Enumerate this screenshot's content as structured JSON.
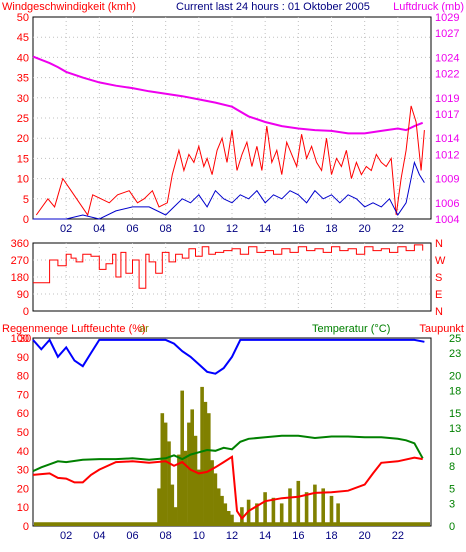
{
  "colors": {
    "wind": "#ff0000",
    "gust": "#ff0000",
    "wind_avg": "#0000cc",
    "pressure": "#ee00ee",
    "direction": "#ff0000",
    "humidity": "#0000ff",
    "temperature": "#008000",
    "dewpoint": "#ff0000",
    "rain": "#808000",
    "rain_bottom": "#808000",
    "frame": "#000000",
    "grid": "#c0c0c0",
    "label_left": "#ff0000",
    "label_humidity": "#0000ff",
    "label_temp": "#008000",
    "label_dew": "#ff0000",
    "label_pressure": "#ee00ee",
    "label_dir": "#ff0000",
    "title": "#000080"
  },
  "chart_data": [
    {
      "type": "line",
      "title": "Current last 24 hours : 01 Oktober 2005",
      "y_left_label": "Windgeschwindigkeit (kmh)",
      "y_right_label": "Luftdruck (mb)",
      "x_ticks": [
        "02",
        "04",
        "06",
        "08",
        "10",
        "12",
        "14",
        "16",
        "18",
        "20",
        "22"
      ],
      "x_range": [
        0,
        24
      ],
      "y_left_ticks": [
        0,
        5,
        10,
        15,
        20,
        25,
        30,
        35,
        40,
        45,
        50
      ],
      "ylim_left": [
        0,
        50
      ],
      "y_right_ticks": [
        1004,
        1006,
        1009,
        1012,
        1014,
        1017,
        1019,
        1022,
        1024,
        1027,
        1029
      ],
      "ylim_right": [
        1004,
        1029
      ],
      "grid": true,
      "series": [
        {
          "name": "Luftdruck (mb)",
          "axis": "right",
          "x": [
            0,
            0.5,
            1,
            1.5,
            2,
            3,
            4,
            5,
            6,
            7,
            8,
            9,
            10,
            11,
            12,
            13,
            14,
            15,
            16,
            17,
            18,
            19,
            20,
            21,
            22,
            22.5,
            23,
            23.5
          ],
          "values": [
            1024.1,
            1023.7,
            1023.3,
            1022.8,
            1022.2,
            1021.5,
            1020.9,
            1020.5,
            1020.2,
            1019.8,
            1019.5,
            1019.2,
            1018.8,
            1018.4,
            1017.9,
            1016.7,
            1016.0,
            1015.5,
            1015.2,
            1015.0,
            1014.9,
            1014.6,
            1014.6,
            1014.9,
            1015.2,
            1015.0,
            1015.5,
            1015.9
          ]
        },
        {
          "name": "Wind gust (kmh)",
          "axis": "left",
          "x": [
            0.2,
            0.9,
            1.3,
            1.8,
            2.3,
            3.3,
            3.6,
            4.6,
            5.1,
            5.8,
            6.3,
            6.7,
            7.2,
            7.6,
            8.1,
            8.4,
            8.8,
            9.1,
            9.4,
            9.7,
            10.0,
            10.3,
            10.5,
            10.8,
            11.1,
            11.4,
            11.7,
            12.0,
            12.3,
            12.6,
            12.9,
            13.2,
            13.5,
            13.8,
            14.1,
            14.4,
            14.7,
            15.0,
            15.3,
            15.6,
            15.9,
            16.2,
            16.5,
            16.8,
            17.1,
            17.4,
            17.7,
            18.0,
            18.3,
            18.6,
            18.9,
            19.2,
            19.5,
            19.8,
            20.1,
            20.4,
            20.7,
            21.0,
            21.3,
            21.6,
            21.9,
            22.2,
            22.5,
            22.8,
            23.1,
            23.4,
            23.6
          ],
          "values": [
            1,
            5,
            3,
            10,
            7,
            1,
            6,
            4,
            6,
            7,
            4,
            5,
            7,
            3,
            4,
            11,
            17,
            12,
            16,
            14,
            18,
            13,
            15,
            11,
            17,
            20,
            14,
            22,
            12,
            16,
            19,
            13,
            18,
            12,
            23,
            14,
            17,
            11,
            19,
            16,
            13,
            21,
            15,
            18,
            14,
            12,
            20,
            11,
            15,
            13,
            17,
            10,
            14,
            11,
            13,
            12,
            16,
            14,
            13,
            15,
            1,
            10,
            17,
            28,
            24,
            12,
            22
          ]
        },
        {
          "name": "Wind average (kmh)",
          "axis": "left",
          "x": [
            0,
            1,
            2,
            3,
            4,
            5,
            6,
            7,
            8,
            8.5,
            9,
            9.5,
            10,
            10.5,
            11,
            11.5,
            12,
            12.5,
            13,
            13.5,
            14,
            14.5,
            15,
            15.5,
            16,
            16.5,
            17,
            17.5,
            18,
            18.5,
            19,
            19.5,
            20,
            20.5,
            21,
            21.5,
            22,
            22.5,
            23,
            23.3,
            23.6
          ],
          "values": [
            0,
            0,
            0,
            1,
            0,
            2,
            3,
            3,
            1,
            3,
            5,
            4,
            6,
            3,
            7,
            5,
            4,
            6,
            5,
            7,
            4,
            6,
            5,
            7,
            6,
            4,
            7,
            5,
            6,
            4,
            6,
            5,
            3,
            4,
            3,
            5,
            1,
            4,
            14,
            11,
            9
          ]
        }
      ]
    },
    {
      "type": "line",
      "title": "",
      "x_range": [
        0,
        24
      ],
      "y_left_ticks": [
        0,
        90,
        180,
        270,
        360
      ],
      "ylim_left": [
        0,
        360
      ],
      "y_right_ticks": [
        "N",
        "W",
        "S",
        "E",
        "N"
      ],
      "grid": true,
      "series": [
        {
          "name": "Windrichtung",
          "axis": "left",
          "x": [
            0,
            0.5,
            1,
            1.5,
            2,
            2.3,
            2.6,
            3,
            3.5,
            4,
            4.4,
            4.8,
            5,
            5.3,
            5.6,
            6,
            6.4,
            6.8,
            7,
            7.4,
            7.8,
            8.2,
            8.6,
            9,
            9.4,
            9.8,
            10.2,
            10.6,
            11,
            11.5,
            12,
            12.5,
            13,
            13.5,
            14,
            14.5,
            15,
            15.5,
            16,
            16.5,
            17,
            17.5,
            18,
            18.5,
            19,
            19.5,
            20,
            20.5,
            21,
            21.5,
            22,
            22.5,
            23,
            23.5
          ],
          "values": [
            150,
            150,
            270,
            240,
            300,
            280,
            260,
            300,
            290,
            220,
            250,
            300,
            180,
            310,
            200,
            270,
            120,
            300,
            260,
            200,
            310,
            260,
            300,
            280,
            330,
            290,
            340,
            300,
            310,
            320,
            330,
            300,
            340,
            310,
            320,
            300,
            330,
            310,
            340,
            320,
            330,
            310,
            340,
            320,
            330,
            300,
            340,
            320,
            330,
            310,
            340,
            320,
            350,
            320
          ]
        }
      ]
    },
    {
      "type": "line",
      "title": "",
      "y_left_label": "Regenmenge Luftfeuchte (%)",
      "y_left_label_suffix": "ar",
      "y_right_label_temp": "Temperatur (°C)",
      "y_right_label_dew": "Taupunkt",
      "x_ticks": [
        "02",
        "04",
        "06",
        "08",
        "10",
        "12",
        "14",
        "16",
        "18",
        "20",
        "22"
      ],
      "x_range": [
        0,
        24
      ],
      "y_left_ticks": [
        0,
        10,
        20,
        30,
        40,
        50,
        60,
        70,
        80,
        90,
        100
      ],
      "y_left_ticks_extra": [
        "30"
      ],
      "ylim_left": [
        0,
        100
      ],
      "y_right_ticks": [
        0,
        3,
        5,
        8,
        10,
        13,
        15,
        18,
        20,
        23,
        25
      ],
      "ylim_right": [
        0,
        25
      ],
      "grid": false,
      "series": [
        {
          "name": "Luftfeuchte",
          "axis": "left",
          "x": [
            0,
            0.5,
            1,
            1.5,
            2,
            2.5,
            3,
            3.5,
            4,
            5,
            6,
            7,
            8,
            8.5,
            9,
            9.5,
            10,
            10.5,
            11,
            11.5,
            12,
            12.5,
            13,
            14,
            16,
            18,
            20,
            22,
            23,
            23.6
          ],
          "values": [
            99,
            94,
            99,
            90,
            95,
            88,
            85,
            92,
            99,
            99,
            99,
            99,
            99,
            97,
            93,
            90,
            86,
            82,
            81,
            84,
            90,
            99,
            99,
            99,
            99,
            99,
            99,
            99,
            99,
            98
          ]
        },
        {
          "name": "Temperatur",
          "axis": "right",
          "x": [
            0,
            0.5,
            1,
            1.5,
            2,
            3,
            4,
            5,
            6,
            7,
            8,
            8.5,
            9,
            9.5,
            10,
            10.5,
            11,
            11.5,
            12,
            12.5,
            13,
            14,
            15,
            16,
            17,
            18,
            19,
            20,
            21,
            22,
            22.5,
            23,
            23.5
          ],
          "values": [
            7.3,
            7.8,
            8.2,
            8.6,
            8.5,
            8.8,
            8.9,
            8.9,
            9.0,
            8.8,
            9.0,
            9.4,
            8.9,
            9.5,
            9.8,
            10.1,
            10.0,
            10.4,
            10.2,
            11.2,
            11.6,
            11.8,
            12.0,
            12.0,
            11.7,
            11.9,
            11.9,
            11.8,
            11.8,
            11.6,
            11.4,
            11.0,
            9.0
          ]
        },
        {
          "name": "Taupunkt",
          "axis": "right",
          "x": [
            0,
            0.5,
            1,
            1.5,
            2,
            2.5,
            3,
            3.5,
            4,
            5,
            6,
            7,
            8,
            8.5,
            9,
            9.5,
            10,
            10.5,
            11,
            11.5,
            12,
            12.3,
            12.6,
            13,
            14,
            15,
            16,
            17,
            18,
            19,
            20,
            20.5,
            21,
            22,
            23,
            23.5
          ],
          "values": [
            6.8,
            6.9,
            7.0,
            6.4,
            6.3,
            5.8,
            5.8,
            6.8,
            7.5,
            8.5,
            8.6,
            8.4,
            8.6,
            8.0,
            8.5,
            7.5,
            7.0,
            7.2,
            7.8,
            8.5,
            9.2,
            2.0,
            1.0,
            2.0,
            3.3,
            3.7,
            3.9,
            4.4,
            4.5,
            4.7,
            5.5,
            7.0,
            8.4,
            8.6,
            9.1,
            8.9
          ]
        },
        {
          "name": "Regenmenge",
          "axis": "left",
          "type": "bar",
          "x": [
            7.6,
            7.8,
            8.0,
            8.2,
            8.4,
            8.6,
            8.8,
            9.0,
            9.2,
            9.4,
            9.6,
            9.8,
            10.0,
            10.2,
            10.4,
            10.6,
            10.8,
            11.0,
            11.2,
            11.4,
            11.6,
            11.8,
            12.0,
            12.6,
            13.0,
            13.5,
            14.0,
            14.5,
            15.0,
            15.5,
            16.0,
            16.5,
            17.0,
            17.5,
            18.0,
            18.4
          ],
          "values": [
            20,
            60,
            55,
            45,
            22,
            10,
            38,
            72,
            40,
            55,
            62,
            48,
            30,
            74,
            66,
            60,
            35,
            28,
            20,
            16,
            12,
            8,
            6,
            10,
            14,
            12,
            18,
            15,
            12,
            20,
            24,
            18,
            22,
            20,
            16,
            12
          ]
        }
      ]
    }
  ]
}
